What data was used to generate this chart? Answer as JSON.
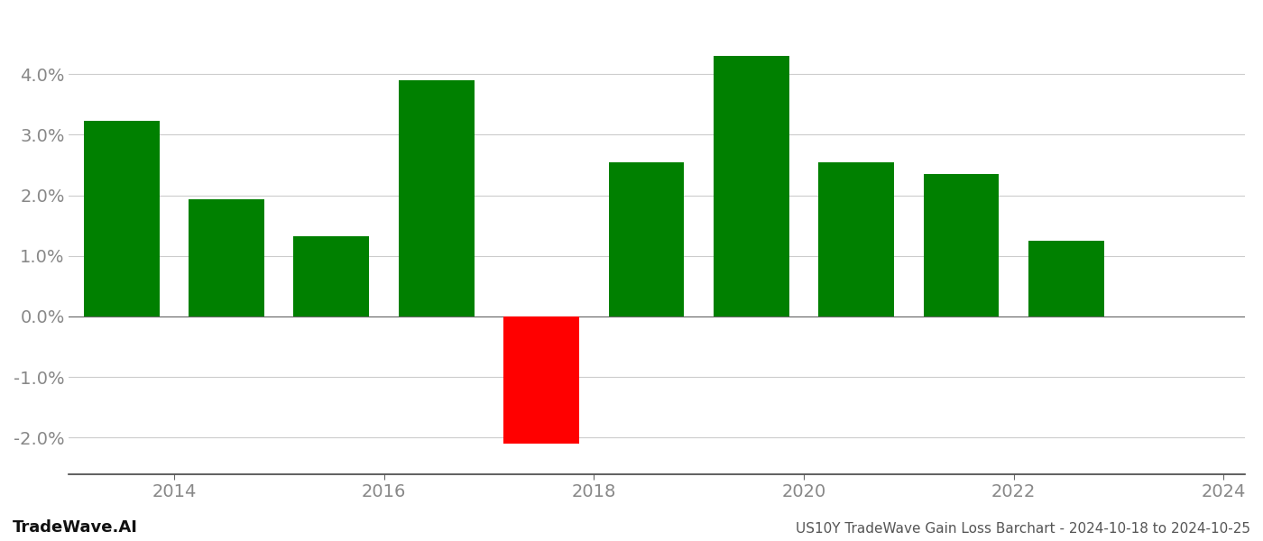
{
  "bar_positions": [
    2013.5,
    2014.5,
    2015.5,
    2016.5,
    2017.5,
    2018.5,
    2019.5,
    2020.5,
    2021.5,
    2022.5,
    2023.5
  ],
  "values": [
    0.0323,
    0.0194,
    0.0132,
    0.039,
    -0.021,
    0.0255,
    0.043,
    0.0255,
    0.0235,
    0.0125,
    0.0
  ],
  "colors": [
    "#008000",
    "#008000",
    "#008000",
    "#008000",
    "#ff0000",
    "#008000",
    "#008000",
    "#008000",
    "#008000",
    "#008000",
    "#008000"
  ],
  "ylim": [
    -0.026,
    0.05
  ],
  "yticks": [
    -0.02,
    -0.01,
    0.0,
    0.01,
    0.02,
    0.03,
    0.04
  ],
  "xticks": [
    2014,
    2016,
    2018,
    2020,
    2022,
    2024
  ],
  "xlim": [
    2013.0,
    2024.2
  ],
  "footer_left": "TradeWave.AI",
  "footer_right": "US10Y TradeWave Gain Loss Barchart - 2024-10-18 to 2024-10-25",
  "background_color": "#ffffff",
  "grid_color": "#cccccc",
  "axis_color": "#999999",
  "tick_label_color": "#888888",
  "bar_width": 0.72
}
